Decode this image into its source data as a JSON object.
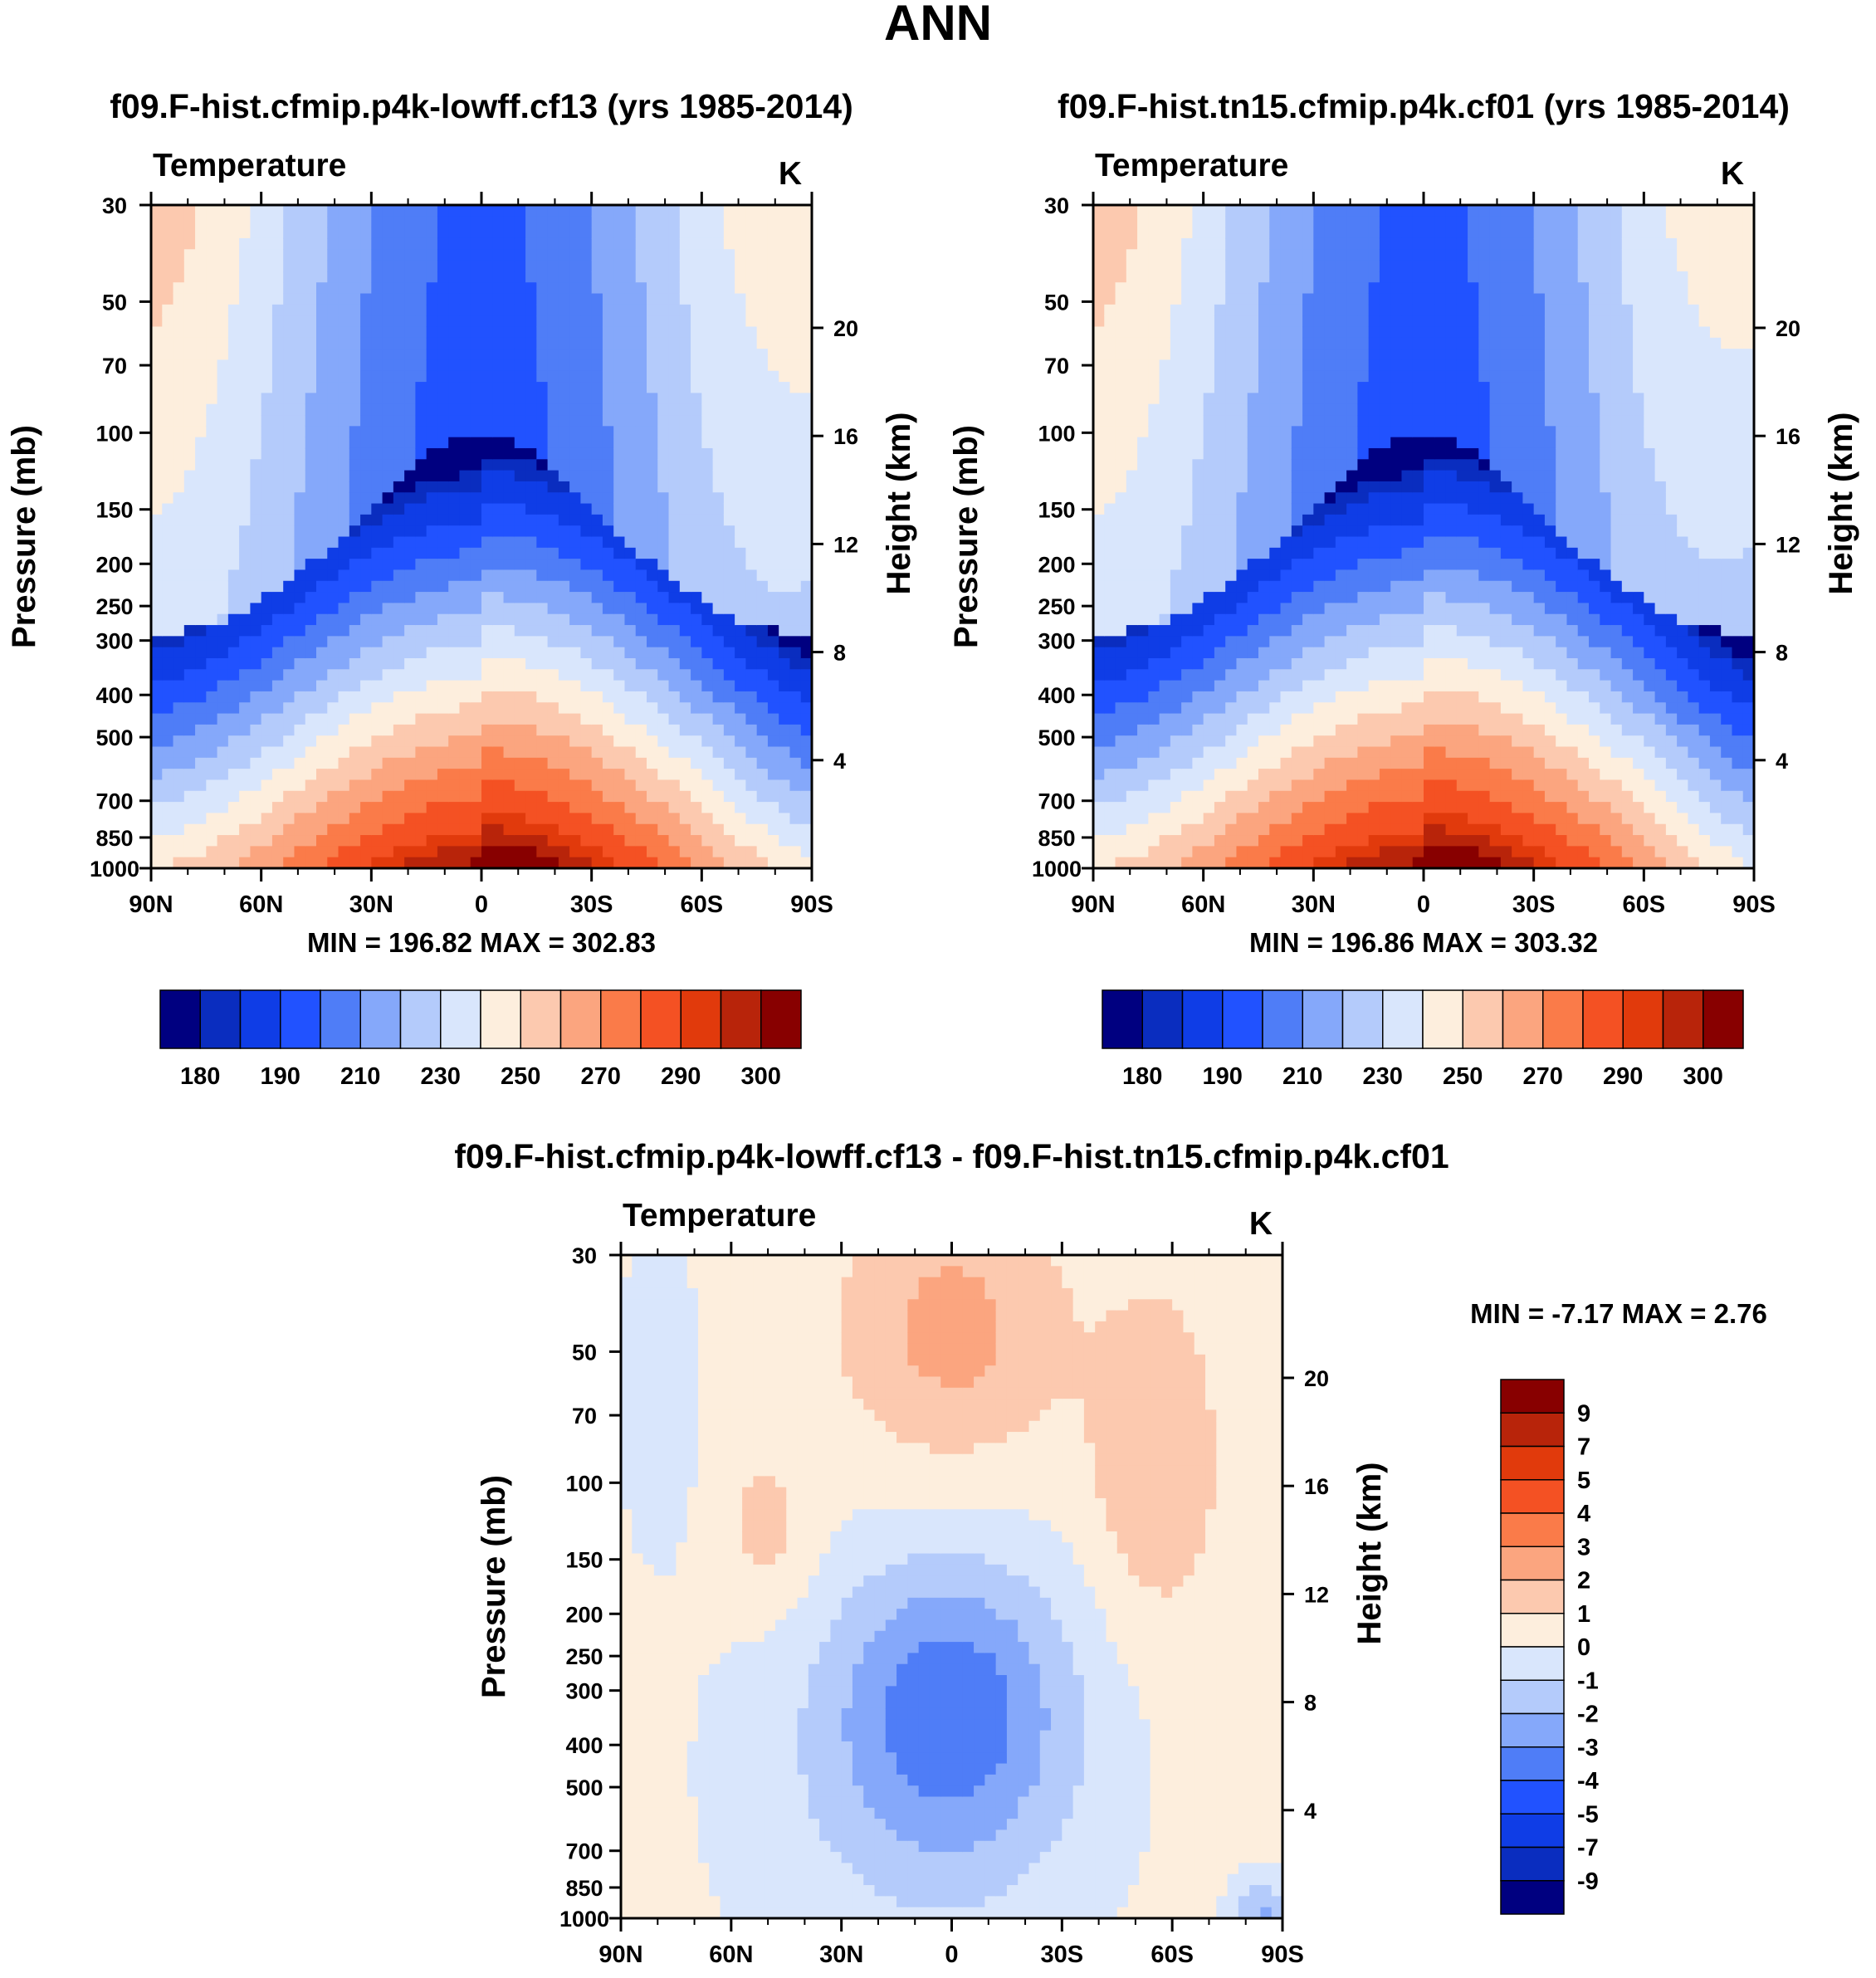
{
  "page_title": "ANN",
  "colors": {
    "abs_levels": [
      "#000080",
      "#0a2dbf",
      "#0f3de6",
      "#2152ff",
      "#4f7df7",
      "#85a8fa",
      "#b4cbfb",
      "#d9e6fc",
      "#fdeedd",
      "#fcc9af",
      "#fba57f",
      "#fa7b49",
      "#f45123",
      "#e13a0c",
      "#b8240a",
      "#880000"
    ],
    "diff_levels": [
      "#880000",
      "#b8240a",
      "#e13a0c",
      "#f45123",
      "#fa7b49",
      "#fba57f",
      "#fcc9af",
      "#fdeedd",
      "#d9e6fc",
      "#b4cbfb",
      "#85a8fa",
      "#4f7df7",
      "#2152ff",
      "#0f3de6",
      "#0a2dbf",
      "#000080"
    ]
  },
  "chart_data": [
    {
      "type": "heatmap",
      "title": "f09.F-hist.cfmip.p4k-lowff.cf13 (yrs 1985-2014)",
      "subtitle_left": "Temperature",
      "subtitle_right": "K",
      "ylabel": "Pressure (mb)",
      "ylabel_right": "Height (km)",
      "x_tick_labels": [
        "90N",
        "60N",
        "30N",
        "0",
        "30S",
        "60S",
        "90S"
      ],
      "y_tick_labels": [
        "30",
        "50",
        "70",
        "100",
        "150",
        "200",
        "250",
        "300",
        "400",
        "500",
        "700",
        "850",
        "1000"
      ],
      "height_tick_labels": [
        "20",
        "16",
        "12",
        "8",
        "4"
      ],
      "y_scale": "log",
      "ylim": [
        1000,
        30
      ],
      "xlim": [
        "90N",
        "90S"
      ],
      "stats_text": "MIN = 196.82  MAX = 302.83",
      "min": 196.82,
      "max": 302.83,
      "colorbar_labels": [
        "180",
        "190",
        "210",
        "230",
        "250",
        "270",
        "290",
        "300"
      ],
      "colorbar_orientation": "horizontal"
    },
    {
      "type": "heatmap",
      "title": "f09.F-hist.tn15.cfmip.p4k.cf01 (yrs 1985-2014)",
      "subtitle_left": "Temperature",
      "subtitle_right": "K",
      "ylabel": "Pressure (mb)",
      "ylabel_right": "Height (km)",
      "x_tick_labels": [
        "90N",
        "60N",
        "30N",
        "0",
        "30S",
        "60S",
        "90S"
      ],
      "y_tick_labels": [
        "30",
        "50",
        "70",
        "100",
        "150",
        "200",
        "250",
        "300",
        "400",
        "500",
        "700",
        "850",
        "1000"
      ],
      "height_tick_labels": [
        "20",
        "16",
        "12",
        "8",
        "4"
      ],
      "y_scale": "log",
      "ylim": [
        1000,
        30
      ],
      "xlim": [
        "90N",
        "90S"
      ],
      "stats_text": "MIN = 196.86  MAX = 303.32",
      "min": 196.86,
      "max": 303.32,
      "colorbar_labels": [
        "180",
        "190",
        "210",
        "230",
        "250",
        "270",
        "290",
        "300"
      ],
      "colorbar_orientation": "horizontal"
    },
    {
      "type": "heatmap",
      "title": "f09.F-hist.cfmip.p4k-lowff.cf13 - f09.F-hist.tn15.cfmip.p4k.cf01",
      "subtitle_left": "Temperature",
      "subtitle_right": "K",
      "ylabel": "Pressure (mb)",
      "ylabel_right": "Height (km)",
      "x_tick_labels": [
        "90N",
        "60N",
        "30N",
        "0",
        "30S",
        "60S",
        "90S"
      ],
      "y_tick_labels": [
        "30",
        "50",
        "70",
        "100",
        "150",
        "200",
        "250",
        "300",
        "400",
        "500",
        "700",
        "850",
        "1000"
      ],
      "height_tick_labels": [
        "20",
        "16",
        "12",
        "8",
        "4"
      ],
      "y_scale": "log",
      "ylim": [
        1000,
        30
      ],
      "xlim": [
        "90N",
        "90S"
      ],
      "stats_text": "MIN =  -7.17  MAX =   2.76",
      "min": -7.17,
      "max": 2.76,
      "colorbar_labels": [
        "9",
        "7",
        "5",
        "4",
        "3",
        "2",
        "1",
        "0",
        "-1",
        "-2",
        "-3",
        "-4",
        "-5",
        "-7",
        "-9"
      ],
      "colorbar_orientation": "vertical"
    }
  ]
}
